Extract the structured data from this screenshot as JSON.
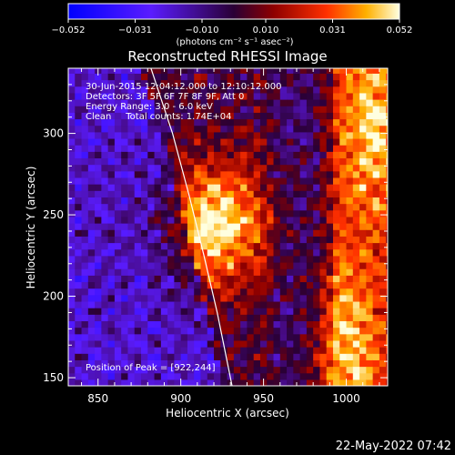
{
  "chart_data": {
    "type": "heatmap",
    "title": "Reconstructed RHESSI Image",
    "xlabel": "Heliocentric X (arcsec)",
    "ylabel": "Heliocentric Y (arcsec)",
    "xlim": [
      832,
      1025
    ],
    "ylim": [
      145,
      340
    ],
    "x_ticks": [
      850,
      900,
      950,
      1000
    ],
    "y_ticks": [
      150,
      200,
      250,
      300
    ],
    "colorbar": {
      "range": [
        -0.052,
        0.052
      ],
      "tick_values": [
        -0.052,
        -0.031,
        -0.01,
        0.01,
        0.031,
        0.052
      ],
      "tick_labels": [
        "−0.052",
        "−0.031",
        "−0.010",
        "0.010",
        "0.031",
        "0.052"
      ],
      "units": "(photons cm⁻² s⁻¹ asec⁻²)"
    },
    "annotations": [
      "30-Jun-2015 12:04:12.000 to 12:10:12.000",
      "Detectors: 3F 5F 6F 7F 8F 9F, Att 0",
      "Energy Range: 3.0 - 6.0 keV",
      "Clean     Total counts: 1.74E+04"
    ],
    "peak_label": "Position of Peak = [922,244]",
    "peak": [
      922,
      244
    ],
    "source_center": [
      922,
      244
    ],
    "limb_curve": [
      [
        882,
        340
      ],
      [
        895,
        300
      ],
      [
        905,
        262
      ],
      [
        914,
        225
      ],
      [
        922,
        190
      ],
      [
        929,
        155
      ],
      [
        931,
        145
      ]
    ],
    "secondary_sources": [
      {
        "center": [
          1015,
          305
        ],
        "label": "bright limb region upper right"
      },
      {
        "center": [
          1000,
          165
        ],
        "label": "bright limb region lower right"
      }
    ]
  },
  "footer": {
    "timestamp": "22-May-2022 07:42"
  },
  "colors": {
    "background": "#000000",
    "limb": "#ffffff"
  }
}
